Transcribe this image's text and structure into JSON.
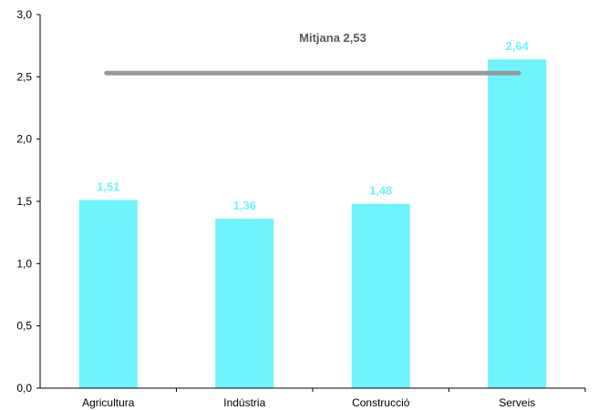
{
  "chart_data": {
    "type": "bar",
    "categories": [
      "Agricultura",
      "Indústria",
      "Construcció",
      "Serveis"
    ],
    "values": [
      1.51,
      1.36,
      1.48,
      2.64
    ],
    "value_labels": [
      "1,51",
      "1,36",
      "1,48",
      "2,64"
    ],
    "ylim": [
      0,
      3.0
    ],
    "yticks": [
      0.0,
      0.5,
      1.0,
      1.5,
      2.0,
      2.5,
      3.0
    ],
    "ytick_labels": [
      "0,0",
      "0,5",
      "1,0",
      "1,5",
      "2,0",
      "2,5",
      "3,0"
    ],
    "grid": false,
    "reference_line": {
      "value": 2.53,
      "label": "Mitjana 2,53"
    },
    "colors": {
      "bar": "#6ff3fc",
      "data_label": "#6ff3fc",
      "reference_line": "#999999",
      "axis": "#000000"
    }
  }
}
